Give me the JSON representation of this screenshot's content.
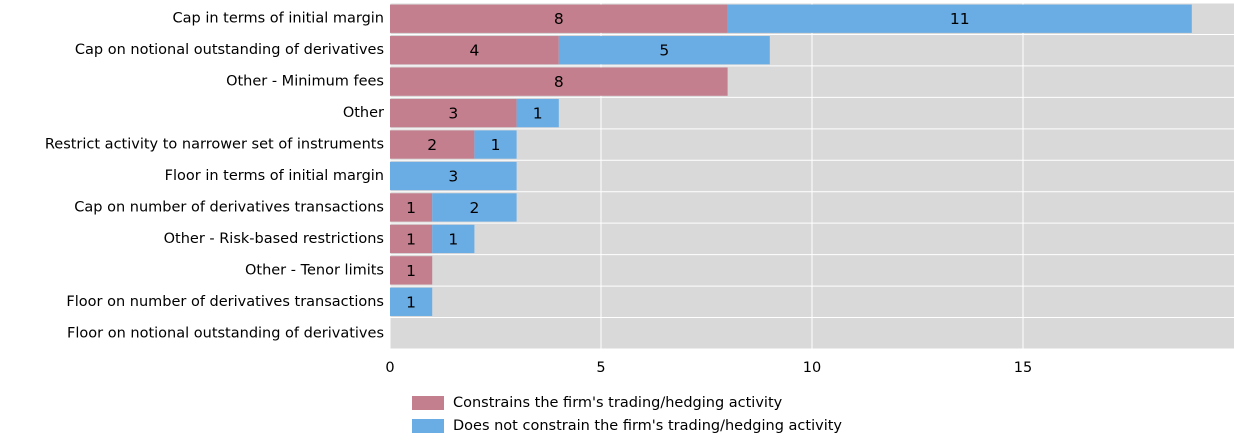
{
  "chart_data": {
    "type": "bar",
    "orientation": "horizontal",
    "stacked": true,
    "categories": [
      "Cap in terms of initial margin",
      "Cap on notional outstanding of derivatives",
      "Other - Minimum fees",
      "Other",
      "Restrict activity to narrower set of instruments",
      "Floor in terms of initial margin",
      "Cap on number of derivatives transactions",
      "Other - Risk-based restrictions",
      "Other - Tenor limits",
      "Floor on number of derivatives transactions",
      "Floor on notional outstanding of derivatives"
    ],
    "series": [
      {
        "name": "Constrains the firm's trading/hedging activity",
        "color": "#c47f8e",
        "values": [
          8,
          4,
          8,
          3,
          2,
          0,
          1,
          1,
          1,
          0,
          0
        ]
      },
      {
        "name": "Does not constrain the firm's trading/hedging activity",
        "color": "#6aade4",
        "values": [
          11,
          5,
          0,
          1,
          1,
          3,
          2,
          1,
          0,
          1,
          0
        ]
      }
    ],
    "xlim": [
      0,
      20
    ],
    "xticks": [
      0,
      5,
      10,
      15
    ],
    "grid": true
  }
}
